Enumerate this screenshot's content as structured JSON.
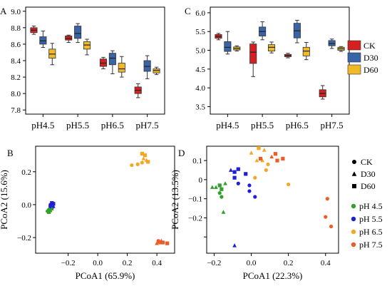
{
  "panels": {
    "A": {
      "label": "A",
      "type": "box",
      "categories": [
        "pH4.5",
        "pH5.5",
        "pH6.5",
        "pH7.5"
      ],
      "ylim": [
        7.75,
        9.05
      ],
      "yticks": [
        7.8,
        8.0,
        8.2,
        8.4,
        8.6,
        8.8,
        9.0
      ],
      "yticklabels": [
        "7.8",
        "8.0",
        "8.2",
        "8.4",
        "8.6",
        "8.8",
        "9.0"
      ],
      "series": [
        {
          "name": "CK",
          "color": "#d42020",
          "boxes": [
            {
              "min": 8.72,
              "q1": 8.74,
              "med": 8.77,
              "q3": 8.8,
              "max": 8.82
            },
            {
              "min": 8.62,
              "q1": 8.65,
              "med": 8.67,
              "q3": 8.7,
              "max": 8.71
            },
            {
              "min": 8.3,
              "q1": 8.33,
              "med": 8.37,
              "q3": 8.42,
              "max": 8.44
            },
            {
              "min": 7.95,
              "q1": 8.0,
              "med": 8.04,
              "q3": 8.08,
              "max": 8.12
            }
          ]
        },
        {
          "name": "D30",
          "color": "#3a64a8",
          "boxes": [
            {
              "min": 8.56,
              "q1": 8.6,
              "med": 8.64,
              "q3": 8.69,
              "max": 8.76
            },
            {
              "min": 8.62,
              "q1": 8.67,
              "med": 8.73,
              "q3": 8.82,
              "max": 8.85
            },
            {
              "min": 8.24,
              "q1": 8.35,
              "med": 8.43,
              "q3": 8.49,
              "max": 8.52
            },
            {
              "min": 8.18,
              "q1": 8.27,
              "med": 8.33,
              "q3": 8.4,
              "max": 8.46
            }
          ]
        },
        {
          "name": "D60",
          "color": "#f0b92a",
          "boxes": [
            {
              "min": 8.35,
              "q1": 8.43,
              "med": 8.48,
              "q3": 8.54,
              "max": 8.61
            },
            {
              "min": 8.47,
              "q1": 8.54,
              "med": 8.59,
              "q3": 8.63,
              "max": 8.66
            },
            {
              "min": 8.2,
              "q1": 8.26,
              "med": 8.3,
              "q3": 8.37,
              "max": 8.45
            },
            {
              "min": 8.23,
              "q1": 8.25,
              "med": 8.28,
              "q3": 8.3,
              "max": 8.32
            }
          ]
        }
      ]
    },
    "C": {
      "label": "C",
      "type": "box",
      "categories": [
        "pH4.5",
        "pH5.5",
        "pH6.5",
        "pH7.5"
      ],
      "ylim": [
        3.3,
        6.15
      ],
      "yticks": [
        3.5,
        4.0,
        4.5,
        5.0,
        5.5,
        6.0
      ],
      "yticklabels": [
        "3.5",
        "4.0",
        "4.5",
        "5.0",
        "5.5",
        "6.0"
      ],
      "series": [
        {
          "name": "CK",
          "color": "#d42020",
          "boxes": [
            {
              "min": 5.28,
              "q1": 5.32,
              "med": 5.37,
              "q3": 5.42,
              "max": 5.45
            },
            {
              "min": 4.3,
              "q1": 4.65,
              "med": 4.95,
              "q3": 5.17,
              "max": 5.22
            },
            {
              "min": 4.8,
              "q1": 4.83,
              "med": 4.86,
              "q3": 4.89,
              "max": 4.92
            },
            {
              "min": 3.7,
              "q1": 3.76,
              "med": 3.85,
              "q3": 3.95,
              "max": 4.06
            }
          ]
        },
        {
          "name": "D30",
          "color": "#3a64a8",
          "boxes": [
            {
              "min": 4.9,
              "q1": 4.97,
              "med": 5.08,
              "q3": 5.23,
              "max": 5.5
            },
            {
              "min": 5.28,
              "q1": 5.38,
              "med": 5.5,
              "q3": 5.62,
              "max": 5.76
            },
            {
              "min": 5.2,
              "q1": 5.33,
              "med": 5.52,
              "q3": 5.72,
              "max": 5.8
            },
            {
              "min": 5.05,
              "q1": 5.12,
              "med": 5.18,
              "q3": 5.26,
              "max": 5.3
            }
          ]
        },
        {
          "name": "D60",
          "color": "#f0b92a",
          "boxes": [
            {
              "min": 4.98,
              "q1": 5.01,
              "med": 5.05,
              "q3": 5.09,
              "max": 5.12
            },
            {
              "min": 4.93,
              "q1": 4.98,
              "med": 5.08,
              "q3": 5.15,
              "max": 5.22
            },
            {
              "min": 4.75,
              "q1": 4.85,
              "med": 4.98,
              "q3": 5.08,
              "max": 5.21
            },
            {
              "min": 4.97,
              "q1": 5.0,
              "med": 5.04,
              "q3": 5.08,
              "max": 5.1
            }
          ]
        }
      ]
    },
    "B": {
      "label": "B",
      "type": "scatter",
      "xlabel": "PCoA1 (65.9%)",
      "ylabel": "PCoA2 (15.6%)",
      "xlim": [
        -0.42,
        0.52
      ],
      "ylim": [
        -0.295,
        0.355
      ],
      "xticks": [
        -0.2,
        0.0,
        0.2,
        0.4
      ],
      "xticklabels": [
        "−0.2",
        "0.0",
        "0.2",
        "0.4"
      ],
      "yticks": [
        -0.2,
        0.0,
        0.2
      ],
      "yticklabels": [
        "−0.2",
        "0.0",
        "0.2"
      ],
      "points": [
        {
          "x": -0.32,
          "y": 0.0,
          "group": "pH 5.5",
          "shape": "circle"
        },
        {
          "x": -0.31,
          "y": 0.01,
          "group": "pH 5.5",
          "shape": "square"
        },
        {
          "x": -0.3,
          "y": -0.01,
          "group": "pH 5.5",
          "shape": "triangle"
        },
        {
          "x": -0.31,
          "y": -0.02,
          "group": "pH 5.5",
          "shape": "circle"
        },
        {
          "x": -0.3,
          "y": 0.005,
          "group": "pH 5.5",
          "shape": "square"
        },
        {
          "x": -0.32,
          "y": -0.015,
          "group": "pH 5.5",
          "shape": "square"
        },
        {
          "x": -0.34,
          "y": -0.04,
          "group": "pH 4.5",
          "shape": "circle"
        },
        {
          "x": -0.33,
          "y": -0.03,
          "group": "pH 4.5",
          "shape": "circle"
        },
        {
          "x": -0.32,
          "y": -0.035,
          "group": "pH 4.5",
          "shape": "triangle"
        },
        {
          "x": -0.33,
          "y": -0.045,
          "group": "pH 4.5",
          "shape": "square"
        },
        {
          "x": -0.31,
          "y": -0.025,
          "group": "pH 4.5",
          "shape": "triangle"
        },
        {
          "x": 0.23,
          "y": 0.24,
          "group": "pH 6.5",
          "shape": "circle"
        },
        {
          "x": 0.27,
          "y": 0.245,
          "group": "pH 6.5",
          "shape": "circle"
        },
        {
          "x": 0.3,
          "y": 0.31,
          "group": "pH 6.5",
          "shape": "square"
        },
        {
          "x": 0.32,
          "y": 0.3,
          "group": "pH 6.5",
          "shape": "square"
        },
        {
          "x": 0.31,
          "y": 0.28,
          "group": "pH 6.5",
          "shape": "triangle"
        },
        {
          "x": 0.33,
          "y": 0.27,
          "group": "pH 6.5",
          "shape": "triangle"
        },
        {
          "x": 0.3,
          "y": 0.255,
          "group": "pH 6.5",
          "shape": "circle"
        },
        {
          "x": 0.34,
          "y": 0.26,
          "group": "pH 6.5",
          "shape": "square"
        },
        {
          "x": 0.41,
          "y": -0.22,
          "group": "pH 7.5",
          "shape": "circle"
        },
        {
          "x": 0.42,
          "y": -0.23,
          "group": "pH 7.5",
          "shape": "circle"
        },
        {
          "x": 0.43,
          "y": -0.22,
          "group": "pH 7.5",
          "shape": "triangle"
        },
        {
          "x": 0.44,
          "y": -0.23,
          "group": "pH 7.5",
          "shape": "square"
        },
        {
          "x": 0.47,
          "y": -0.235,
          "group": "pH 7.5",
          "shape": "square"
        },
        {
          "x": 0.4,
          "y": -0.235,
          "group": "pH 7.5",
          "shape": "triangle"
        }
      ]
    },
    "D": {
      "label": "D",
      "type": "scatter",
      "xlabel": "PCoA1 (22.3%)",
      "ylabel": "PCoA2 (13.5%)",
      "xlim": [
        -0.24,
        0.47
      ],
      "ylim": [
        -0.385,
        0.175
      ],
      "xticks": [
        -0.2,
        0.0,
        0.2,
        0.4
      ],
      "xticklabels": [
        "−0.2",
        "0.0",
        "0.2",
        "0.4"
      ],
      "yticks": [
        -0.3,
        -0.2,
        -0.1,
        0.0,
        0.1
      ],
      "yticklabels": [
        "",
        "−0.2",
        "−0.1",
        "0",
        "0.1"
      ],
      "points": [
        {
          "x": -0.21,
          "y": -0.04,
          "group": "pH 4.5",
          "shape": "triangle"
        },
        {
          "x": -0.19,
          "y": -0.04,
          "group": "pH 4.5",
          "shape": "triangle"
        },
        {
          "x": -0.17,
          "y": -0.03,
          "group": "pH 4.5",
          "shape": "square"
        },
        {
          "x": -0.16,
          "y": -0.05,
          "group": "pH 4.5",
          "shape": "square"
        },
        {
          "x": -0.17,
          "y": -0.07,
          "group": "pH 4.5",
          "shape": "circle"
        },
        {
          "x": -0.16,
          "y": -0.09,
          "group": "pH 4.5",
          "shape": "circle"
        },
        {
          "x": -0.14,
          "y": -0.02,
          "group": "pH 4.5",
          "shape": "triangle"
        },
        {
          "x": -0.15,
          "y": -0.17,
          "group": "pH 4.5",
          "shape": "triangle"
        },
        {
          "x": -0.11,
          "y": 0.05,
          "group": "pH 5.5",
          "shape": "triangle"
        },
        {
          "x": -0.09,
          "y": 0.04,
          "group": "pH 5.5",
          "shape": "square"
        },
        {
          "x": -0.07,
          "y": 0.055,
          "group": "pH 5.5",
          "shape": "square"
        },
        {
          "x": -0.09,
          "y": 0.01,
          "group": "pH 5.5",
          "shape": "square"
        },
        {
          "x": -0.07,
          "y": -0.02,
          "group": "pH 5.5",
          "shape": "circle"
        },
        {
          "x": -0.03,
          "y": 0.03,
          "group": "pH 5.5",
          "shape": "square"
        },
        {
          "x": -0.01,
          "y": -0.03,
          "group": "pH 5.5",
          "shape": "circle"
        },
        {
          "x": -0.01,
          "y": -0.06,
          "group": "pH 5.5",
          "shape": "circle"
        },
        {
          "x": 0.02,
          "y": -0.09,
          "group": "pH 5.5",
          "shape": "circle"
        },
        {
          "x": -0.09,
          "y": -0.345,
          "group": "pH 5.5",
          "shape": "triangle"
        },
        {
          "x": 0.0,
          "y": 0.14,
          "group": "pH 6.5",
          "shape": "triangle"
        },
        {
          "x": 0.04,
          "y": 0.165,
          "group": "pH 6.5",
          "shape": "square"
        },
        {
          "x": 0.07,
          "y": 0.155,
          "group": "pH 6.5",
          "shape": "triangle"
        },
        {
          "x": 0.03,
          "y": 0.1,
          "group": "pH 6.5",
          "shape": "triangle"
        },
        {
          "x": 0.06,
          "y": 0.1,
          "group": "pH 6.5",
          "shape": "triangle"
        },
        {
          "x": 0.09,
          "y": 0.08,
          "group": "pH 6.5",
          "shape": "circle"
        },
        {
          "x": 0.08,
          "y": 0.05,
          "group": "pH 6.5",
          "shape": "circle"
        },
        {
          "x": 0.02,
          "y": 0.01,
          "group": "pH 6.5",
          "shape": "circle"
        },
        {
          "x": 0.2,
          "y": -0.025,
          "group": "pH 6.5",
          "shape": "circle"
        },
        {
          "x": 0.05,
          "y": 0.11,
          "group": "pH 7.5",
          "shape": "square"
        },
        {
          "x": 0.11,
          "y": 0.12,
          "group": "pH 7.5",
          "shape": "triangle"
        },
        {
          "x": 0.13,
          "y": 0.135,
          "group": "pH 7.5",
          "shape": "square"
        },
        {
          "x": 0.17,
          "y": 0.11,
          "group": "pH 7.5",
          "shape": "square"
        },
        {
          "x": 0.14,
          "y": 0.1,
          "group": "pH 7.5",
          "shape": "square"
        },
        {
          "x": 0.41,
          "y": -0.1,
          "group": "pH 7.5",
          "shape": "circle"
        },
        {
          "x": 0.4,
          "y": -0.195,
          "group": "pH 7.5",
          "shape": "circle"
        },
        {
          "x": 0.43,
          "y": -0.245,
          "group": "pH 7.5",
          "shape": "circle"
        }
      ]
    }
  },
  "legend_treatment": {
    "items": [
      {
        "name": "CK",
        "color": "#d42020"
      },
      {
        "name": "D30",
        "color": "#3a64a8"
      },
      {
        "name": "D60",
        "color": "#f0b92a"
      }
    ]
  },
  "legend_shape": {
    "items": [
      {
        "name": "CK",
        "shape": "circle"
      },
      {
        "name": "D30",
        "shape": "triangle"
      },
      {
        "name": "D60",
        "shape": "square"
      }
    ]
  },
  "legend_ph": {
    "items": [
      {
        "name": "pH 4.5",
        "color": "#33a02c"
      },
      {
        "name": "pH 5.5",
        "color": "#1f1fd6"
      },
      {
        "name": "pH 6.5",
        "color": "#f5a623"
      },
      {
        "name": "pH 7.5",
        "color": "#f05a24"
      }
    ]
  },
  "chart_data": [
    {
      "type": "box",
      "panel": "A",
      "categories": [
        "pH4.5",
        "pH5.5",
        "pH6.5",
        "pH7.5"
      ],
      "series": [
        {
          "name": "CK",
          "medians": [
            8.77,
            8.67,
            8.37,
            8.04
          ]
        },
        {
          "name": "D30",
          "medians": [
            8.64,
            8.73,
            8.43,
            8.33
          ]
        },
        {
          "name": "D60",
          "medians": [
            8.48,
            8.59,
            8.3,
            8.28
          ]
        }
      ],
      "ylim": [
        7.75,
        9.05
      ]
    },
    {
      "type": "box",
      "panel": "C",
      "categories": [
        "pH4.5",
        "pH5.5",
        "pH6.5",
        "pH7.5"
      ],
      "series": [
        {
          "name": "CK",
          "medians": [
            5.37,
            4.95,
            4.86,
            3.85
          ]
        },
        {
          "name": "D30",
          "medians": [
            5.08,
            5.5,
            5.52,
            5.18
          ]
        },
        {
          "name": "D60",
          "medians": [
            5.05,
            5.08,
            4.98,
            5.04
          ]
        }
      ],
      "ylim": [
        3.3,
        6.15
      ]
    },
    {
      "type": "scatter",
      "panel": "B",
      "xlabel": "PCoA1 (65.9%)",
      "ylabel": "PCoA2 (15.6%)",
      "xlim": [
        -0.42,
        0.52
      ],
      "ylim": [
        -0.295,
        0.355
      ],
      "series": [
        {
          "name": "pH 4.5"
        },
        {
          "name": "pH 5.5"
        },
        {
          "name": "pH 6.5"
        },
        {
          "name": "pH 7.5"
        }
      ]
    },
    {
      "type": "scatter",
      "panel": "D",
      "xlabel": "PCoA1 (22.3%)",
      "ylabel": "PCoA2 (13.5%)",
      "xlim": [
        -0.24,
        0.47
      ],
      "ylim": [
        -0.385,
        0.175
      ],
      "series": [
        {
          "name": "pH 4.5"
        },
        {
          "name": "pH 5.5"
        },
        {
          "name": "pH 6.5"
        },
        {
          "name": "pH 7.5"
        }
      ]
    }
  ]
}
